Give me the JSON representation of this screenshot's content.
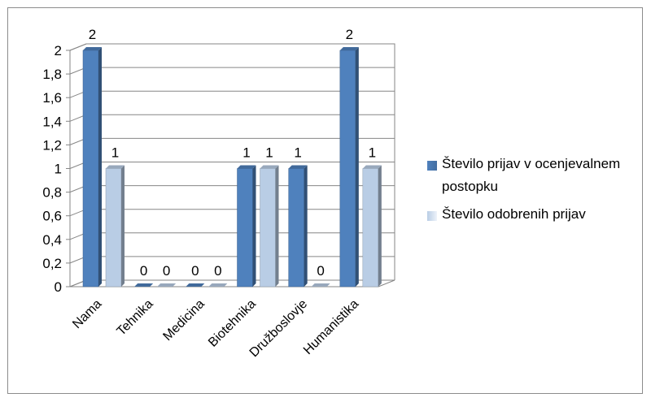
{
  "chart_data": {
    "type": "bar",
    "categories": [
      "Nama",
      "Tehnika",
      "Medicina",
      "Biotehnika",
      "Družboslovje",
      "Humanistika"
    ],
    "series": [
      {
        "name": "Število prijav v ocenjevalnem postopku",
        "values": [
          2,
          0,
          0,
          1,
          1,
          2
        ],
        "color": "#4f81bd"
      },
      {
        "name": "Število odobrenih prijav",
        "values": [
          1,
          0,
          0,
          1,
          0,
          1
        ],
        "color": "#b9cde5"
      }
    ],
    "data_labels": [
      [
        "2",
        "0",
        "0",
        "1",
        "1",
        "2"
      ],
      [
        "1",
        "0",
        "0",
        "1",
        "0",
        "1"
      ]
    ],
    "y_ticks": [
      "0",
      "0,2",
      "0,4",
      "0,6",
      "0,8",
      "1",
      "1,2",
      "1,4",
      "1,6",
      "1,8",
      "2"
    ],
    "ylim": [
      0,
      2
    ],
    "grid": true,
    "legend_position": "right",
    "style": "3d-clustered-column"
  },
  "legend": {
    "items": [
      {
        "label": "Število prijav v ocenjevalnem postopku"
      },
      {
        "label": "Število odobrenih prijav"
      }
    ]
  }
}
